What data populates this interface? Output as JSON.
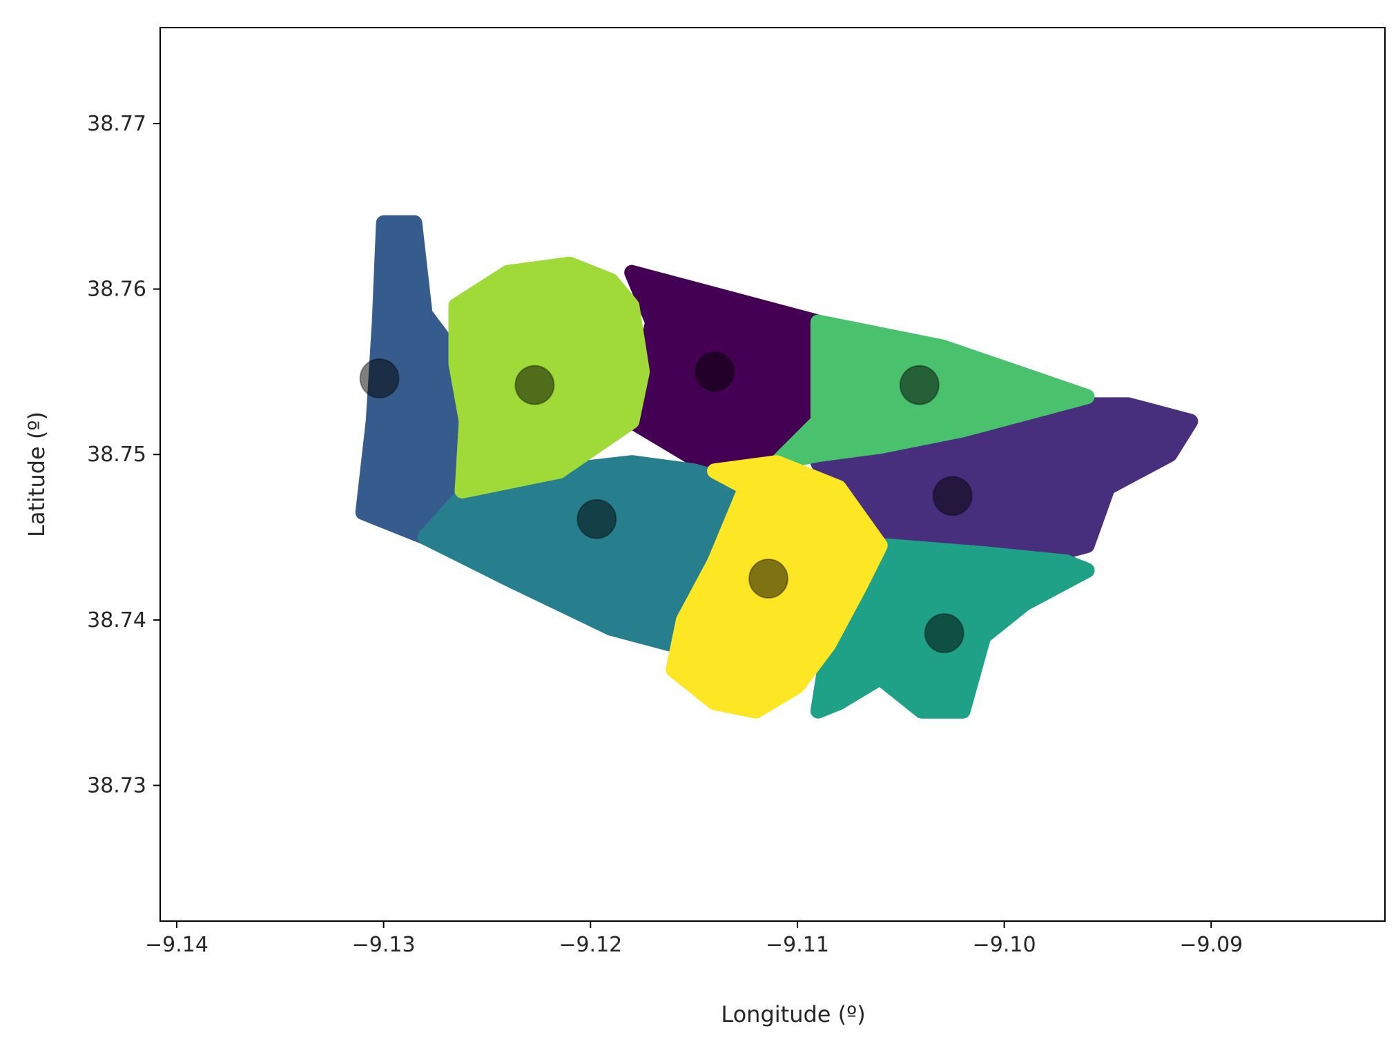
{
  "chart_data": {
    "type": "scatter",
    "title": "",
    "xlabel": "Longitude (º)",
    "ylabel": "Latitude (º)",
    "xlim": [
      -9.1408,
      -9.0816
    ],
    "ylim": [
      38.7218,
      38.7758
    ],
    "xticks": [
      -9.14,
      -9.13,
      -9.12,
      -9.11,
      -9.1,
      -9.09
    ],
    "xtick_labels": [
      "−9.14",
      "−9.13",
      "−9.12",
      "−9.11",
      "−9.10",
      "−9.09"
    ],
    "yticks": [
      38.73,
      38.74,
      38.75,
      38.76,
      38.77
    ],
    "ytick_labels": [
      "38.73",
      "38.74",
      "38.75",
      "38.76",
      "38.77"
    ],
    "grid": false,
    "legend": "none",
    "colormap": "viridis",
    "clusters": [
      {
        "color": "#440154",
        "centroid": [
          -9.114,
          38.755
        ],
        "region": [
          [
            -9.118,
            38.761
          ],
          [
            -9.109,
            38.758
          ],
          [
            -9.109,
            38.752
          ],
          [
            -9.111,
            38.7495
          ],
          [
            -9.114,
            38.749
          ],
          [
            -9.118,
            38.752
          ],
          [
            -9.117,
            38.758
          ]
        ]
      },
      {
        "color": "#472f7d",
        "centroid": [
          -9.1025,
          38.7475
        ],
        "region": [
          [
            -9.109,
            38.7495
          ],
          [
            -9.102,
            38.751
          ],
          [
            -9.096,
            38.753
          ],
          [
            -9.094,
            38.753
          ],
          [
            -9.091,
            38.752
          ],
          [
            -9.092,
            38.75
          ],
          [
            -9.095,
            38.748
          ],
          [
            -9.096,
            38.7445
          ],
          [
            -9.099,
            38.7435
          ],
          [
            -9.102,
            38.744
          ],
          [
            -9.106,
            38.745
          ],
          [
            -9.108,
            38.747
          ]
        ]
      },
      {
        "color": "#365c8d",
        "centroid": [
          -9.1302,
          38.7546
        ],
        "region": [
          [
            -9.131,
            38.7465
          ],
          [
            -9.1305,
            38.752
          ],
          [
            -9.1302,
            38.758
          ],
          [
            -9.13,
            38.764
          ],
          [
            -9.1285,
            38.764
          ],
          [
            -9.128,
            38.7585
          ],
          [
            -9.1265,
            38.756
          ],
          [
            -9.126,
            38.75
          ],
          [
            -9.1275,
            38.746
          ],
          [
            -9.128,
            38.745
          ]
        ]
      },
      {
        "color": "#277f8e",
        "centroid": [
          -9.1197,
          38.7461
        ],
        "region": [
          [
            -9.128,
            38.745
          ],
          [
            -9.126,
            38.7478
          ],
          [
            -9.1215,
            38.749
          ],
          [
            -9.118,
            38.7495
          ],
          [
            -9.115,
            38.749
          ],
          [
            -9.112,
            38.748
          ],
          [
            -9.114,
            38.743
          ],
          [
            -9.116,
            38.7385
          ],
          [
            -9.119,
            38.7395
          ],
          [
            -9.124,
            38.7425
          ]
        ]
      },
      {
        "color": "#1fa187",
        "centroid": [
          -9.1029,
          38.7392
        ],
        "region": [
          [
            -9.106,
            38.7445
          ],
          [
            -9.101,
            38.744
          ],
          [
            -9.097,
            38.7435
          ],
          [
            -9.096,
            38.743
          ],
          [
            -9.099,
            38.741
          ],
          [
            -9.101,
            38.739
          ],
          [
            -9.102,
            38.7345
          ],
          [
            -9.104,
            38.7345
          ],
          [
            -9.106,
            38.7365
          ],
          [
            -9.108,
            38.735
          ],
          [
            -9.109,
            38.7345
          ],
          [
            -9.1085,
            38.7385
          ],
          [
            -9.107,
            38.742
          ]
        ]
      },
      {
        "color": "#4ac16d",
        "centroid": [
          -9.1041,
          38.7542
        ],
        "region": [
          [
            -9.109,
            38.758
          ],
          [
            -9.103,
            38.7565
          ],
          [
            -9.096,
            38.7535
          ],
          [
            -9.102,
            38.7515
          ],
          [
            -9.106,
            38.7505
          ],
          [
            -9.109,
            38.75
          ],
          [
            -9.111,
            38.7495
          ],
          [
            -9.109,
            38.752
          ]
        ]
      },
      {
        "color": "#a0da39",
        "centroid": [
          -9.1227,
          38.7542
        ],
        "region": [
          [
            -9.1265,
            38.7555
          ],
          [
            -9.1265,
            38.759
          ],
          [
            -9.124,
            38.761
          ],
          [
            -9.121,
            38.7615
          ],
          [
            -9.119,
            38.7605
          ],
          [
            -9.118,
            38.759
          ],
          [
            -9.1175,
            38.755
          ],
          [
            -9.118,
            38.752
          ],
          [
            -9.1215,
            38.749
          ],
          [
            -9.1262,
            38.7478
          ],
          [
            -9.126,
            38.752
          ]
        ]
      },
      {
        "color": "#fde725",
        "centroid": [
          -9.1114,
          38.7425
        ],
        "region": [
          [
            -9.114,
            38.749
          ],
          [
            -9.111,
            38.7495
          ],
          [
            -9.108,
            38.748
          ],
          [
            -9.106,
            38.7445
          ],
          [
            -9.107,
            38.742
          ],
          [
            -9.1085,
            38.7385
          ],
          [
            -9.11,
            38.736
          ],
          [
            -9.112,
            38.7345
          ],
          [
            -9.114,
            38.735
          ],
          [
            -9.116,
            38.737
          ],
          [
            -9.1155,
            38.74
          ],
          [
            -9.114,
            38.7435
          ],
          [
            -9.1125,
            38.748
          ]
        ]
      }
    ]
  }
}
